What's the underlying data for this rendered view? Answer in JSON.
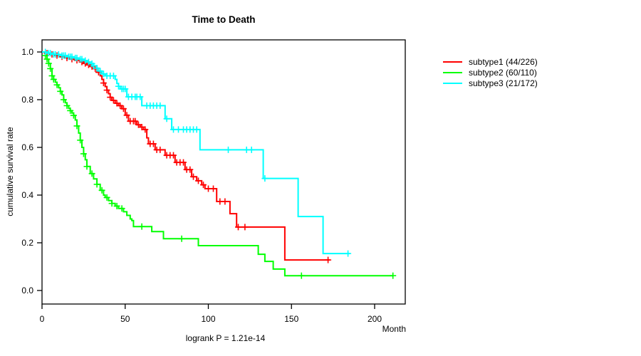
{
  "chart_data": {
    "type": "line",
    "subtype": "kaplan-meier-step",
    "title": "Time to Death",
    "ylabel": "cumulative survival rate",
    "xlabel": "Month",
    "footnote": "logrank P = 1.21e-14",
    "axis_color": "#000000",
    "grid": false,
    "legend_position": "right",
    "xlim": [
      0,
      218
    ],
    "ylim": [
      0.0,
      1.0
    ],
    "x_ticks": [
      0,
      50,
      100,
      150,
      200
    ],
    "y_ticks": [
      "0.0",
      "0.2",
      "0.4",
      "0.6",
      "0.8",
      "1.0"
    ],
    "series": [
      {
        "name": "subtype1",
        "label": "subtype1 (44/226)",
        "color": "#ff0000",
        "end_month": 173,
        "steps": [
          [
            0,
            1.0
          ],
          [
            2,
            0.995
          ],
          [
            5,
            0.99
          ],
          [
            8,
            0.985
          ],
          [
            11,
            0.98
          ],
          [
            14,
            0.975
          ],
          [
            17,
            0.97
          ],
          [
            20,
            0.965
          ],
          [
            23,
            0.958
          ],
          [
            25,
            0.952
          ],
          [
            27,
            0.946
          ],
          [
            29,
            0.939
          ],
          [
            31,
            0.93
          ],
          [
            33,
            0.915
          ],
          [
            35,
            0.9
          ],
          [
            36,
            0.885
          ],
          [
            37,
            0.87
          ],
          [
            38,
            0.855
          ],
          [
            39,
            0.84
          ],
          [
            40,
            0.825
          ],
          [
            41,
            0.81
          ],
          [
            42,
            0.797
          ],
          [
            44,
            0.785
          ],
          [
            46,
            0.775
          ],
          [
            48,
            0.762
          ],
          [
            50,
            0.735
          ],
          [
            52,
            0.71
          ],
          [
            57,
            0.695
          ],
          [
            59,
            0.685
          ],
          [
            61,
            0.675
          ],
          [
            63,
            0.64
          ],
          [
            64,
            0.615
          ],
          [
            68,
            0.59
          ],
          [
            74,
            0.567
          ],
          [
            80,
            0.537
          ],
          [
            86,
            0.507
          ],
          [
            90,
            0.477
          ],
          [
            93,
            0.46
          ],
          [
            96,
            0.443
          ],
          [
            98,
            0.427
          ],
          [
            105,
            0.373
          ],
          [
            113,
            0.322
          ],
          [
            117,
            0.266
          ],
          [
            146,
            0.128
          ]
        ],
        "censor_months": [
          3,
          6,
          9,
          12,
          15,
          18,
          21,
          24,
          26,
          28,
          30,
          32,
          34,
          37,
          39,
          41,
          43,
          45,
          47,
          49,
          51,
          53,
          55,
          56,
          58,
          60,
          62,
          65,
          67,
          69,
          71,
          75,
          77,
          79,
          81,
          83,
          85,
          87,
          89,
          91,
          94,
          97,
          100,
          103,
          107,
          110,
          118,
          122,
          172
        ]
      },
      {
        "name": "subtype2",
        "label": "subtype2 (60/110)",
        "color": "#00ff00",
        "end_month": 211,
        "steps": [
          [
            0,
            1.0
          ],
          [
            2,
            0.985
          ],
          [
            3,
            0.97
          ],
          [
            4,
            0.952
          ],
          [
            5,
            0.93
          ],
          [
            6,
            0.9
          ],
          [
            7,
            0.885
          ],
          [
            8,
            0.873
          ],
          [
            9,
            0.862
          ],
          [
            10,
            0.85
          ],
          [
            11,
            0.835
          ],
          [
            12,
            0.82
          ],
          [
            13,
            0.8
          ],
          [
            14,
            0.787
          ],
          [
            15,
            0.775
          ],
          [
            16,
            0.764
          ],
          [
            17,
            0.754
          ],
          [
            18,
            0.744
          ],
          [
            19,
            0.734
          ],
          [
            20,
            0.715
          ],
          [
            21,
            0.69
          ],
          [
            22,
            0.66
          ],
          [
            23,
            0.63
          ],
          [
            24,
            0.6
          ],
          [
            25,
            0.573
          ],
          [
            26,
            0.548
          ],
          [
            27,
            0.52
          ],
          [
            29,
            0.49
          ],
          [
            31,
            0.468
          ],
          [
            33,
            0.445
          ],
          [
            35,
            0.42
          ],
          [
            37,
            0.4
          ],
          [
            38,
            0.39
          ],
          [
            40,
            0.377
          ],
          [
            42,
            0.365
          ],
          [
            44,
            0.354
          ],
          [
            46,
            0.344
          ],
          [
            49,
            0.33
          ],
          [
            51,
            0.315
          ],
          [
            53,
            0.3
          ],
          [
            54,
            0.293
          ],
          [
            55,
            0.268
          ],
          [
            66,
            0.247
          ],
          [
            73,
            0.217
          ],
          [
            94,
            0.188
          ],
          [
            130,
            0.152
          ],
          [
            134,
            0.122
          ],
          [
            139,
            0.09
          ],
          [
            146,
            0.062
          ]
        ],
        "censor_months": [
          2,
          3,
          4,
          5,
          6,
          7,
          9,
          11,
          13,
          15,
          17,
          19,
          21,
          23,
          25,
          27,
          30,
          33,
          36,
          39,
          42,
          45,
          48,
          60,
          84,
          156,
          211
        ]
      },
      {
        "name": "subtype3",
        "label": "subtype3 (21/172)",
        "color": "#00ffff",
        "end_month": 185,
        "steps": [
          [
            0,
            1.0
          ],
          [
            3,
            0.995
          ],
          [
            7,
            0.99
          ],
          [
            11,
            0.985
          ],
          [
            15,
            0.98
          ],
          [
            19,
            0.975
          ],
          [
            22,
            0.97
          ],
          [
            25,
            0.964
          ],
          [
            27,
            0.958
          ],
          [
            29,
            0.951
          ],
          [
            31,
            0.942
          ],
          [
            33,
            0.932
          ],
          [
            34,
            0.92
          ],
          [
            36,
            0.908
          ],
          [
            38,
            0.9
          ],
          [
            44,
            0.885
          ],
          [
            45,
            0.868
          ],
          [
            46,
            0.856
          ],
          [
            47,
            0.845
          ],
          [
            51,
            0.812
          ],
          [
            60,
            0.775
          ],
          [
            74,
            0.72
          ],
          [
            78,
            0.675
          ],
          [
            95,
            0.59
          ],
          [
            133,
            0.47
          ],
          [
            154,
            0.31
          ],
          [
            169,
            0.155
          ]
        ],
        "censor_months": [
          2,
          4,
          5,
          7,
          8,
          10,
          12,
          13,
          14,
          16,
          17,
          18,
          20,
          21,
          23,
          24,
          26,
          28,
          30,
          31,
          33,
          35,
          37,
          39,
          41,
          43,
          46,
          48,
          49,
          50,
          52,
          54,
          56,
          57,
          59,
          63,
          65,
          67,
          69,
          71,
          75,
          79,
          82,
          85,
          87,
          89,
          91,
          93,
          112,
          123,
          126,
          134,
          184
        ]
      }
    ]
  }
}
